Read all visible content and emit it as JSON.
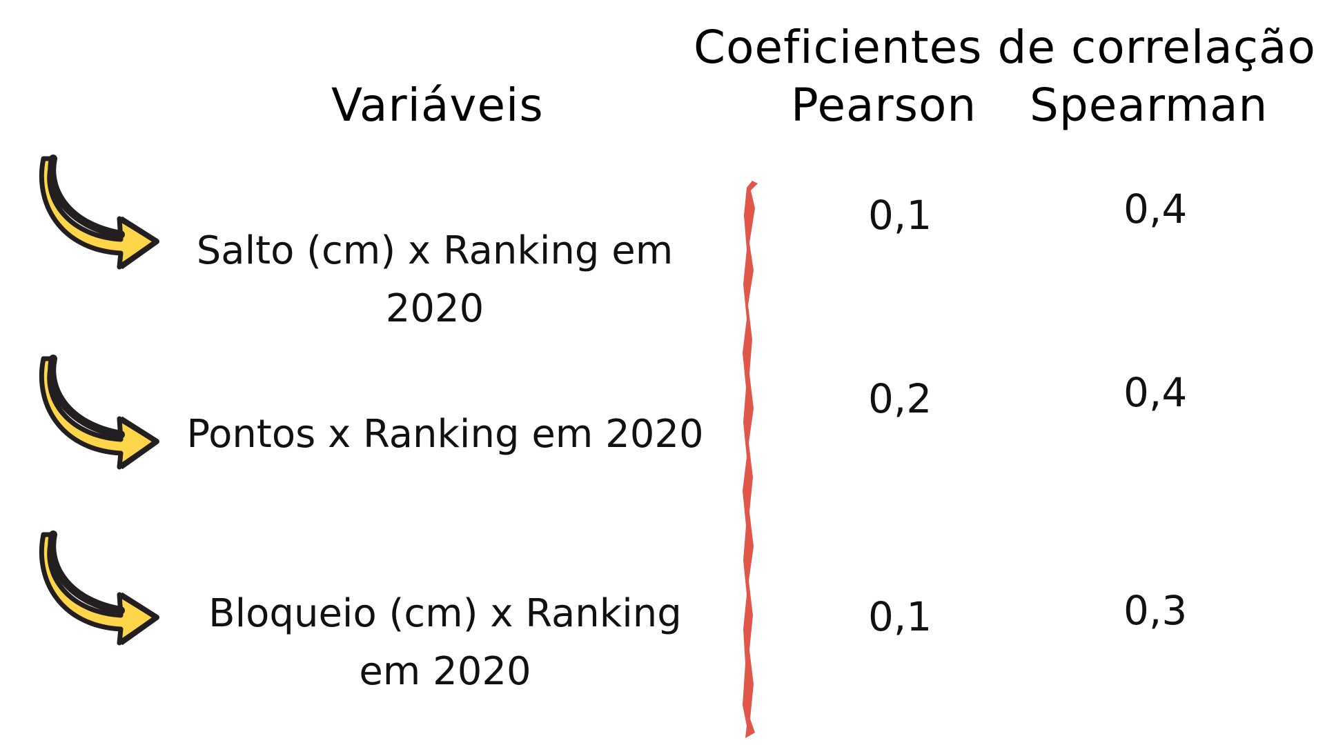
{
  "header": {
    "variables_label": "Variáveis",
    "coefficients_title": "Coeficientes de correlação",
    "pearson_label": "Pearson",
    "spearman_label": "Spearman"
  },
  "rows": [
    {
      "label": "Salto (cm) x Ranking em 2020",
      "pearson": "0,1",
      "spearman": "0,4"
    },
    {
      "label": "Pontos x Ranking em 2020",
      "pearson": "0,2",
      "spearman": "0,4"
    },
    {
      "label": "Bloqueio (cm) x Ranking em 2020",
      "pearson": "0,1",
      "spearman": "0,3"
    }
  ],
  "icons": {
    "row_marker": "curved-arrow-icon",
    "divider": "brush-stroke-divider"
  },
  "colors": {
    "arrow_fill": "#FFD54A",
    "arrow_outline": "#231F20",
    "divider": "#E0574A",
    "text": "#111111"
  }
}
